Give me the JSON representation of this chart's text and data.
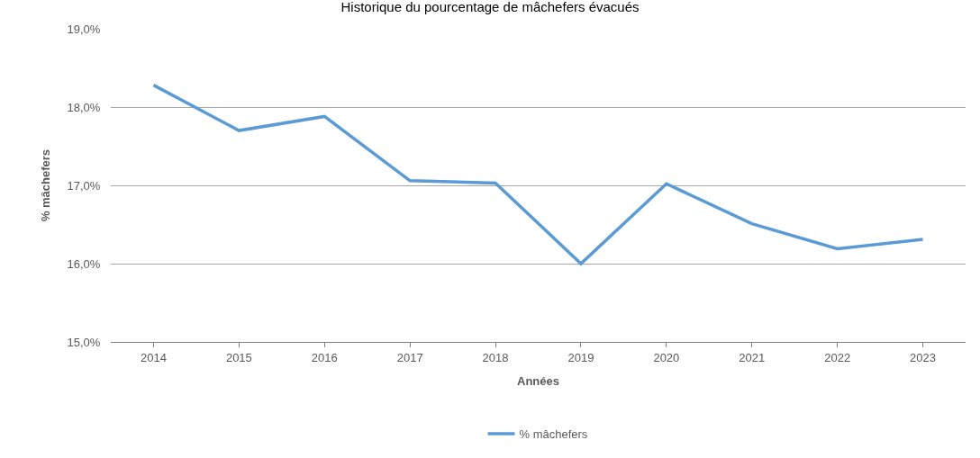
{
  "chart_data": {
    "type": "line",
    "title": "Historique du pourcentage de mâchefers évacués",
    "xlabel": "Années",
    "ylabel": "% mâchefers",
    "categories": [
      "2014",
      "2015",
      "2016",
      "2017",
      "2018",
      "2019",
      "2020",
      "2021",
      "2022",
      "2023"
    ],
    "series": [
      {
        "name": "% mâchefers",
        "color": "#5b9bd5",
        "values": [
          18.28,
          17.7,
          17.88,
          17.06,
          17.03,
          16.0,
          17.02,
          16.51,
          16.19,
          16.31
        ]
      }
    ],
    "ylim": [
      15,
      19
    ],
    "yticks": [
      {
        "value": 15,
        "label": "15,0%"
      },
      {
        "value": 16,
        "label": "16,0%"
      },
      {
        "value": 17,
        "label": "17,0%"
      },
      {
        "value": 18,
        "label": "18,0%"
      },
      {
        "value": 19,
        "label": "19,0%"
      }
    ],
    "grid": "y",
    "legend": "bottom",
    "marker": "none",
    "line_style": "solid"
  }
}
